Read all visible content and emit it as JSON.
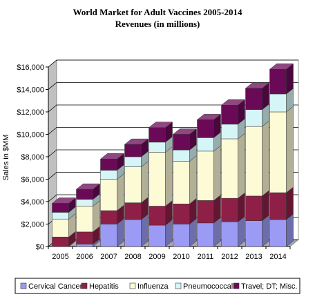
{
  "chart_data": {
    "type": "bar",
    "stacked": true,
    "title": "World Market for Adult Vaccines 2005-2014",
    "subtitle": "Revenues (in millions)",
    "ylabel": "Sales in $MM",
    "xlabel": "",
    "ylim": [
      0,
      16000
    ],
    "yticks": [
      0,
      2000,
      4000,
      6000,
      8000,
      10000,
      12000,
      14000,
      16000
    ],
    "ytick_labels": [
      "$0",
      "$2,000",
      "$4,000",
      "$6,000",
      "$8,000",
      "$10,000",
      "$12,000",
      "$14,000",
      "$16,000"
    ],
    "grid": true,
    "legend_position": "bottom",
    "categories": [
      "2005",
      "2006",
      "2007",
      "2008",
      "2009",
      "2010",
      "2011",
      "2012",
      "2013",
      "2014"
    ],
    "series": [
      {
        "name": "Cervical Cancer",
        "color": "#9b9bf5",
        "values": [
          0,
          200,
          2000,
          2400,
          1900,
          2000,
          2100,
          2200,
          2300,
          2400
        ]
      },
      {
        "name": "Hepatitis",
        "color": "#8e2048",
        "values": [
          850,
          1100,
          1200,
          1500,
          1700,
          1800,
          2000,
          2100,
          2200,
          2400
        ]
      },
      {
        "name": "Influenza",
        "color": "#fdfbd6",
        "values": [
          1600,
          2300,
          2800,
          3200,
          4800,
          3800,
          4400,
          5300,
          6200,
          7200
        ]
      },
      {
        "name": "Pneumococcal",
        "color": "#d6f5f7",
        "values": [
          600,
          600,
          800,
          900,
          900,
          1000,
          1200,
          1300,
          1500,
          1600
        ]
      },
      {
        "name": "Travel; DT; Misc.",
        "color": "#6a0a57",
        "values": [
          800,
          900,
          1000,
          1100,
          1300,
          1400,
          1600,
          1700,
          1900,
          2200
        ]
      }
    ]
  }
}
